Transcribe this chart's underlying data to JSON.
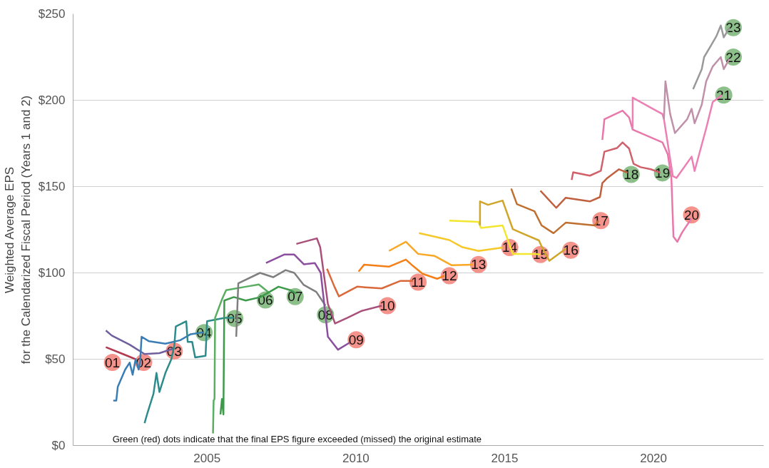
{
  "chart_data": {
    "type": "line",
    "ylabel": "Weighted Average EPS\nfor the Calendarized Fiscal Period (Years 1 and 2)",
    "xlim": [
      2000.5,
      2023.7
    ],
    "ylim": [
      0,
      250
    ],
    "xticks": [
      2005,
      2010,
      2015,
      2020
    ],
    "yticks": [
      {
        "value": 0,
        "label": "$0"
      },
      {
        "value": 50,
        "label": "$50"
      },
      {
        "value": 100,
        "label": "$100"
      },
      {
        "value": 150,
        "label": "$150"
      },
      {
        "value": 200,
        "label": "$200"
      },
      {
        "value": 250,
        "label": "$250"
      }
    ],
    "grid": "y",
    "series": [
      {
        "color": "#b23a4e",
        "x": [
          2001.6,
          2002.1,
          2002.6
        ],
        "values": [
          57,
          53.5,
          50
        ]
      },
      {
        "color": "#6f5f9e",
        "x": [
          2001.6,
          2001.8,
          2002.4,
          2002.9,
          2003.4,
          2003.9
        ],
        "values": [
          66.6,
          63.7,
          58.4,
          53,
          53.5,
          56.3
        ]
      },
      {
        "color": "#3a7db5",
        "x": [
          2001.85,
          2001.95,
          2002.0,
          2002.1,
          2002.25,
          2002.4,
          2002.5,
          2002.6,
          2002.7,
          2002.75,
          2002.8,
          2003.05,
          2003.6,
          2004.1,
          2004.45,
          2004.8,
          2004.9
        ],
        "values": [
          26,
          26,
          34,
          38,
          44,
          48,
          41,
          50,
          44,
          48,
          63,
          60.4,
          59,
          61,
          64.5,
          65.4,
          65.5
        ]
      },
      {
        "color": "#2e8b8b",
        "x": [
          2002.9,
          2003.0,
          2003.2,
          2003.3,
          2003.4,
          2003.6,
          2003.8,
          2003.9,
          2003.95,
          2004.3,
          2004.35,
          2004.5,
          2004.6,
          2004.95,
          2005.0,
          2005.6,
          2005.9
        ],
        "values": [
          13,
          19,
          30,
          42,
          31,
          42,
          50,
          58,
          69,
          72,
          60,
          60,
          51,
          52,
          72,
          74,
          74
        ]
      },
      {
        "color": "#5aae61",
        "x": [
          2005.2,
          2005.22,
          2005.25,
          2005.27,
          2005.51,
          2005.64,
          2006.3,
          2006.74,
          2007.08
        ],
        "values": [
          7,
          26,
          27,
          74,
          85,
          90,
          92,
          93.3,
          88.5
        ]
      },
      {
        "color": "#3d9a4a",
        "x": [
          2005.45,
          2005.5,
          2005.55,
          2005.58,
          2005.9,
          2006.3,
          2006.8,
          2007.4,
          2007.8,
          2008.0
        ],
        "values": [
          18,
          27,
          18,
          84,
          86,
          84,
          86,
          92,
          90,
          88
        ]
      },
      {
        "color": "#7f7f7f",
        "x": [
          2005.98,
          2006.05,
          2006.78,
          2007.22,
          2007.64,
          2007.93,
          2008.25,
          2008.67,
          2008.98
        ],
        "values": [
          63,
          94,
          100,
          97.5,
          101.6,
          100,
          93,
          89,
          81
        ]
      },
      {
        "color": "#8c4fa0",
        "x": [
          2006.98,
          2007.59,
          2007.93,
          2008.25,
          2008.62,
          2008.82,
          2009.06,
          2009.4,
          2009.79
        ],
        "values": [
          105.7,
          110.6,
          110.6,
          105,
          105.7,
          100,
          63,
          55.5,
          59.6
        ]
      },
      {
        "color": "#a8507a",
        "x": [
          2008.0,
          2008.69,
          2008.8,
          2009.06,
          2009.3,
          2009.72,
          2010.2,
          2010.87
        ],
        "values": [
          116.8,
          120,
          115,
          82,
          70.7,
          74,
          78,
          81
        ]
      },
      {
        "color": "#d9683a",
        "x": [
          2009.03,
          2009.28,
          2009.43,
          2010.04,
          2010.87,
          2011.5,
          2011.92
        ],
        "values": [
          102.4,
          92,
          86.4,
          92,
          91,
          95.4,
          95.4
        ]
      },
      {
        "color": "#f57f17",
        "x": [
          2010.09,
          2010.28,
          2011.11,
          2011.68,
          2011.92,
          2012.24,
          2012.73,
          2012.97
        ],
        "values": [
          100.7,
          104.8,
          103.6,
          107.7,
          104,
          99.5,
          96.6,
          98.3
        ]
      },
      {
        "color": "#f9a825",
        "x": [
          2011.11,
          2011.68,
          2012.09,
          2012.65,
          2013.22,
          2013.95
        ],
        "values": [
          112.7,
          118,
          111,
          109.8,
          104.4,
          104.8
        ]
      },
      {
        "color": "#f6c82a",
        "x": [
          2012.12,
          2012.65,
          2013.14,
          2013.56,
          2014.12,
          2014.93
        ],
        "values": [
          123,
          121,
          119,
          115,
          112.7,
          114.7
        ]
      },
      {
        "color": "#f2e630",
        "x": [
          2013.14,
          2014.12,
          2014.2,
          2014.93,
          2015.27,
          2016.0,
          2016.2
        ],
        "values": [
          130.3,
          129.5,
          126,
          127.5,
          111,
          111,
          110.6
        ]
      },
      {
        "color": "#cfa52a",
        "x": [
          2014.17,
          2014.17,
          2014.44,
          2014.93,
          2015.27,
          2015.58,
          2016.15,
          2016.25,
          2016.5,
          2017.05
        ],
        "values": [
          127.5,
          141.4,
          139.4,
          141.9,
          125.4,
          123,
          118.8,
          115,
          107,
          113.9
        ]
      },
      {
        "color": "#bf7030",
        "x": [
          2015.22,
          2015.41,
          2016.0,
          2016.24,
          2016.64,
          2017.05,
          2018.03,
          2018.15
        ],
        "values": [
          148.8,
          139.8,
          135.7,
          127.5,
          123,
          129.1,
          127.5,
          130.3
        ]
      },
      {
        "color": "#c0603f",
        "x": [
          2016.2,
          2016.73,
          2017.05,
          2017.86,
          2018.2,
          2018.28,
          2018.45,
          2018.84,
          2019.13
        ],
        "values": [
          147.6,
          137.7,
          143.5,
          141.4,
          143.9,
          152,
          155,
          160,
          158
        ]
      },
      {
        "color": "#d0606a",
        "x": [
          2017.25,
          2017.3,
          2017.86,
          2018.23,
          2018.35,
          2018.77,
          2018.96,
          2019.18,
          2019.33,
          2019.57,
          2019.91,
          2020.23
        ],
        "values": [
          153.8,
          158.3,
          156.3,
          159.1,
          170.2,
          172.3,
          175.6,
          172,
          163.2,
          161.2,
          160,
          158
        ]
      },
      {
        "color": "#e878aa",
        "x": [
          2018.28,
          2018.35,
          2018.96,
          2019.18,
          2019.3,
          2020.3,
          2020.48,
          2020.6,
          2020.67,
          2020.8,
          2020.96,
          2021.28
        ],
        "values": [
          177,
          189,
          194,
          190,
          183,
          175.6,
          168.6,
          155,
          121,
          118,
          123.4,
          131.6
        ]
      },
      {
        "color": "#ec7fb4",
        "x": [
          2019.3,
          2019.3,
          2019.98,
          2020.3,
          2020.35,
          2020.65,
          2020.77,
          2021.28,
          2021.38,
          2021.77,
          2021.99,
          2022.3
        ],
        "values": [
          183,
          201.5,
          195,
          192,
          189,
          156,
          155,
          167.3,
          159,
          183.8,
          199,
          203
        ]
      },
      {
        "color": "#c090a8",
        "x": [
          2020.35,
          2020.4,
          2020.56,
          2020.72,
          2021.13,
          2021.28,
          2021.38,
          2021.62,
          2021.77,
          2021.99,
          2022.26,
          2022.36,
          2022.55
        ],
        "values": [
          189,
          211,
          192,
          181,
          189,
          195,
          186.7,
          197.4,
          211,
          219.6,
          225,
          218,
          224
        ]
      },
      {
        "color": "#999999",
        "x": [
          2021.33,
          2021.62,
          2021.7,
          2021.94,
          2022.11,
          2022.26,
          2022.36,
          2022.55
        ],
        "values": [
          206.4,
          218,
          225,
          232,
          237,
          243.3,
          236.4,
          242
        ]
      },
      {
        "type": "scatter",
        "marker": "circle",
        "x": [
          2001.82,
          2002.87,
          2003.9,
          2004.9,
          2005.93,
          2006.96,
          2007.96,
          2008.98,
          2010.01,
          2011.06,
          2012.09,
          2013.14,
          2014.12,
          2015.17,
          2016.2,
          2017.22,
          2018.23,
          2019.25,
          2020.3,
          2021.28,
          2022.36,
          2022.68,
          2022.68
        ],
        "values": [
          48.1,
          48.1,
          54.7,
          65.4,
          73.6,
          84.3,
          86.3,
          75.7,
          61.3,
          81,
          94.6,
          98.3,
          104.9,
          114.7,
          110.6,
          113.1,
          130.3,
          157,
          157.9,
          133.6,
          203,
          225,
          242
        ],
        "colors": [
          "#f4938b",
          "#f4938b",
          "#f4938b",
          "#8dbf8a",
          "#8dbf8a",
          "#8dbf8a",
          "#8dbf8a",
          "#8dbf8a",
          "#f4938b",
          "#f4938b",
          "#f4938b",
          "#f4938b",
          "#f4938b",
          "#f4938b",
          "#f4938b",
          "#f4938b",
          "#f4938b",
          "#8dbf8a",
          "#8dbf8a",
          "#f4938b",
          "#8dbf8a",
          "#8dbf8a",
          "#8dbf8a"
        ]
      }
    ],
    "annotations": [
      {
        "text": "01",
        "x": 2001.82,
        "y": 48.1
      },
      {
        "text": "02",
        "x": 2002.87,
        "y": 48.1
      },
      {
        "text": "03",
        "x": 2003.9,
        "y": 54.7
      },
      {
        "text": "04",
        "x": 2004.9,
        "y": 65.4
      },
      {
        "text": "05",
        "x": 2005.93,
        "y": 73.6
      },
      {
        "text": "06",
        "x": 2006.96,
        "y": 84.3
      },
      {
        "text": "07",
        "x": 2007.96,
        "y": 86.3
      },
      {
        "text": "08",
        "x": 2008.98,
        "y": 75.7
      },
      {
        "text": "09",
        "x": 2010.01,
        "y": 61.3
      },
      {
        "text": "10",
        "x": 2011.06,
        "y": 81
      },
      {
        "text": "11",
        "x": 2012.09,
        "y": 94.6
      },
      {
        "text": "12",
        "x": 2013.14,
        "y": 98.3
      },
      {
        "text": "13",
        "x": 2014.12,
        "y": 104.9
      },
      {
        "text": "14",
        "x": 2015.17,
        "y": 114.7
      },
      {
        "text": "15",
        "x": 2016.2,
        "y": 110.6
      },
      {
        "text": "16",
        "x": 2017.22,
        "y": 113.1
      },
      {
        "text": "17",
        "x": 2018.23,
        "y": 130.3
      },
      {
        "text": "18",
        "x": 2019.25,
        "y": 157
      },
      {
        "text": "19",
        "x": 2020.3,
        "y": 157.9
      },
      {
        "text": "20",
        "x": 2021.28,
        "y": 133.6
      },
      {
        "text": "21",
        "x": 2022.36,
        "y": 203
      },
      {
        "text": "22",
        "x": 2022.68,
        "y": 225
      },
      {
        "text": "23",
        "x": 2022.68,
        "y": 242
      },
      "Green (red) dots indicate that the final EPS figure exceeded (missed) the original estimate"
    ]
  }
}
